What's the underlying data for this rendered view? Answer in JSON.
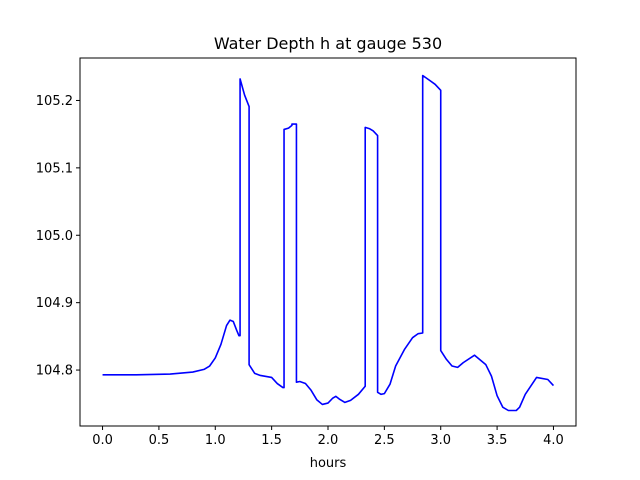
{
  "chart_data": {
    "type": "line",
    "title": "Water Depth h at gauge 530",
    "xlabel": "hours",
    "ylabel": "",
    "xlim": [
      -0.2,
      4.2
    ],
    "ylim": [
      104.717,
      105.263
    ],
    "xticks": [
      0.0,
      0.5,
      1.0,
      1.5,
      2.0,
      2.5,
      3.0,
      3.5,
      4.0
    ],
    "xtick_labels": [
      "0.0",
      "0.5",
      "1.0",
      "1.5",
      "2.0",
      "2.5",
      "3.0",
      "3.5",
      "4.0"
    ],
    "yticks": [
      104.8,
      104.9,
      105.0,
      105.1,
      105.2
    ],
    "ytick_labels": [
      "104.8",
      "104.9",
      "105.0",
      "105.1",
      "105.2"
    ],
    "grid": false,
    "legend": "none",
    "series": [
      {
        "color": "#0000ff",
        "x": [
          0.0,
          0.3,
          0.6,
          0.8,
          0.9,
          0.95,
          1.0,
          1.05,
          1.1,
          1.13,
          1.16,
          1.19,
          1.21,
          1.22,
          1.22,
          1.26,
          1.3,
          1.3,
          1.35,
          1.4,
          1.5,
          1.55,
          1.6,
          1.61,
          1.61,
          1.65,
          1.68,
          1.68,
          1.72,
          1.72,
          1.75,
          1.8,
          1.85,
          1.9,
          1.95,
          2.0,
          2.04,
          2.07,
          2.1,
          2.15,
          2.2,
          2.27,
          2.33,
          2.33,
          2.37,
          2.4,
          2.44,
          2.44,
          2.47,
          2.5,
          2.55,
          2.6,
          2.68,
          2.75,
          2.8,
          2.84,
          2.84,
          2.9,
          2.95,
          3.0,
          3.0,
          3.05,
          3.1,
          3.15,
          3.2,
          3.3,
          3.4,
          3.45,
          3.5,
          3.55,
          3.6,
          3.67,
          3.7,
          3.75,
          3.85,
          3.95,
          4.0
        ],
        "y": [
          104.793,
          104.793,
          104.794,
          104.797,
          104.801,
          104.806,
          104.818,
          104.838,
          104.866,
          104.874,
          104.872,
          104.859,
          104.851,
          104.851,
          105.232,
          105.208,
          105.191,
          104.808,
          104.795,
          104.792,
          104.789,
          104.78,
          104.774,
          104.774,
          105.157,
          105.159,
          105.163,
          105.165,
          105.165,
          104.782,
          104.783,
          104.78,
          104.77,
          104.756,
          104.749,
          104.751,
          104.758,
          104.761,
          104.757,
          104.752,
          104.755,
          104.764,
          104.776,
          105.16,
          105.158,
          105.155,
          105.148,
          104.767,
          104.764,
          104.765,
          104.779,
          104.806,
          104.831,
          104.848,
          104.854,
          104.855,
          105.237,
          105.23,
          105.224,
          105.215,
          104.829,
          104.816,
          104.806,
          104.804,
          104.811,
          104.822,
          104.808,
          104.791,
          104.762,
          104.745,
          104.74,
          104.74,
          104.745,
          104.764,
          104.789,
          104.786,
          104.777
        ]
      }
    ]
  }
}
